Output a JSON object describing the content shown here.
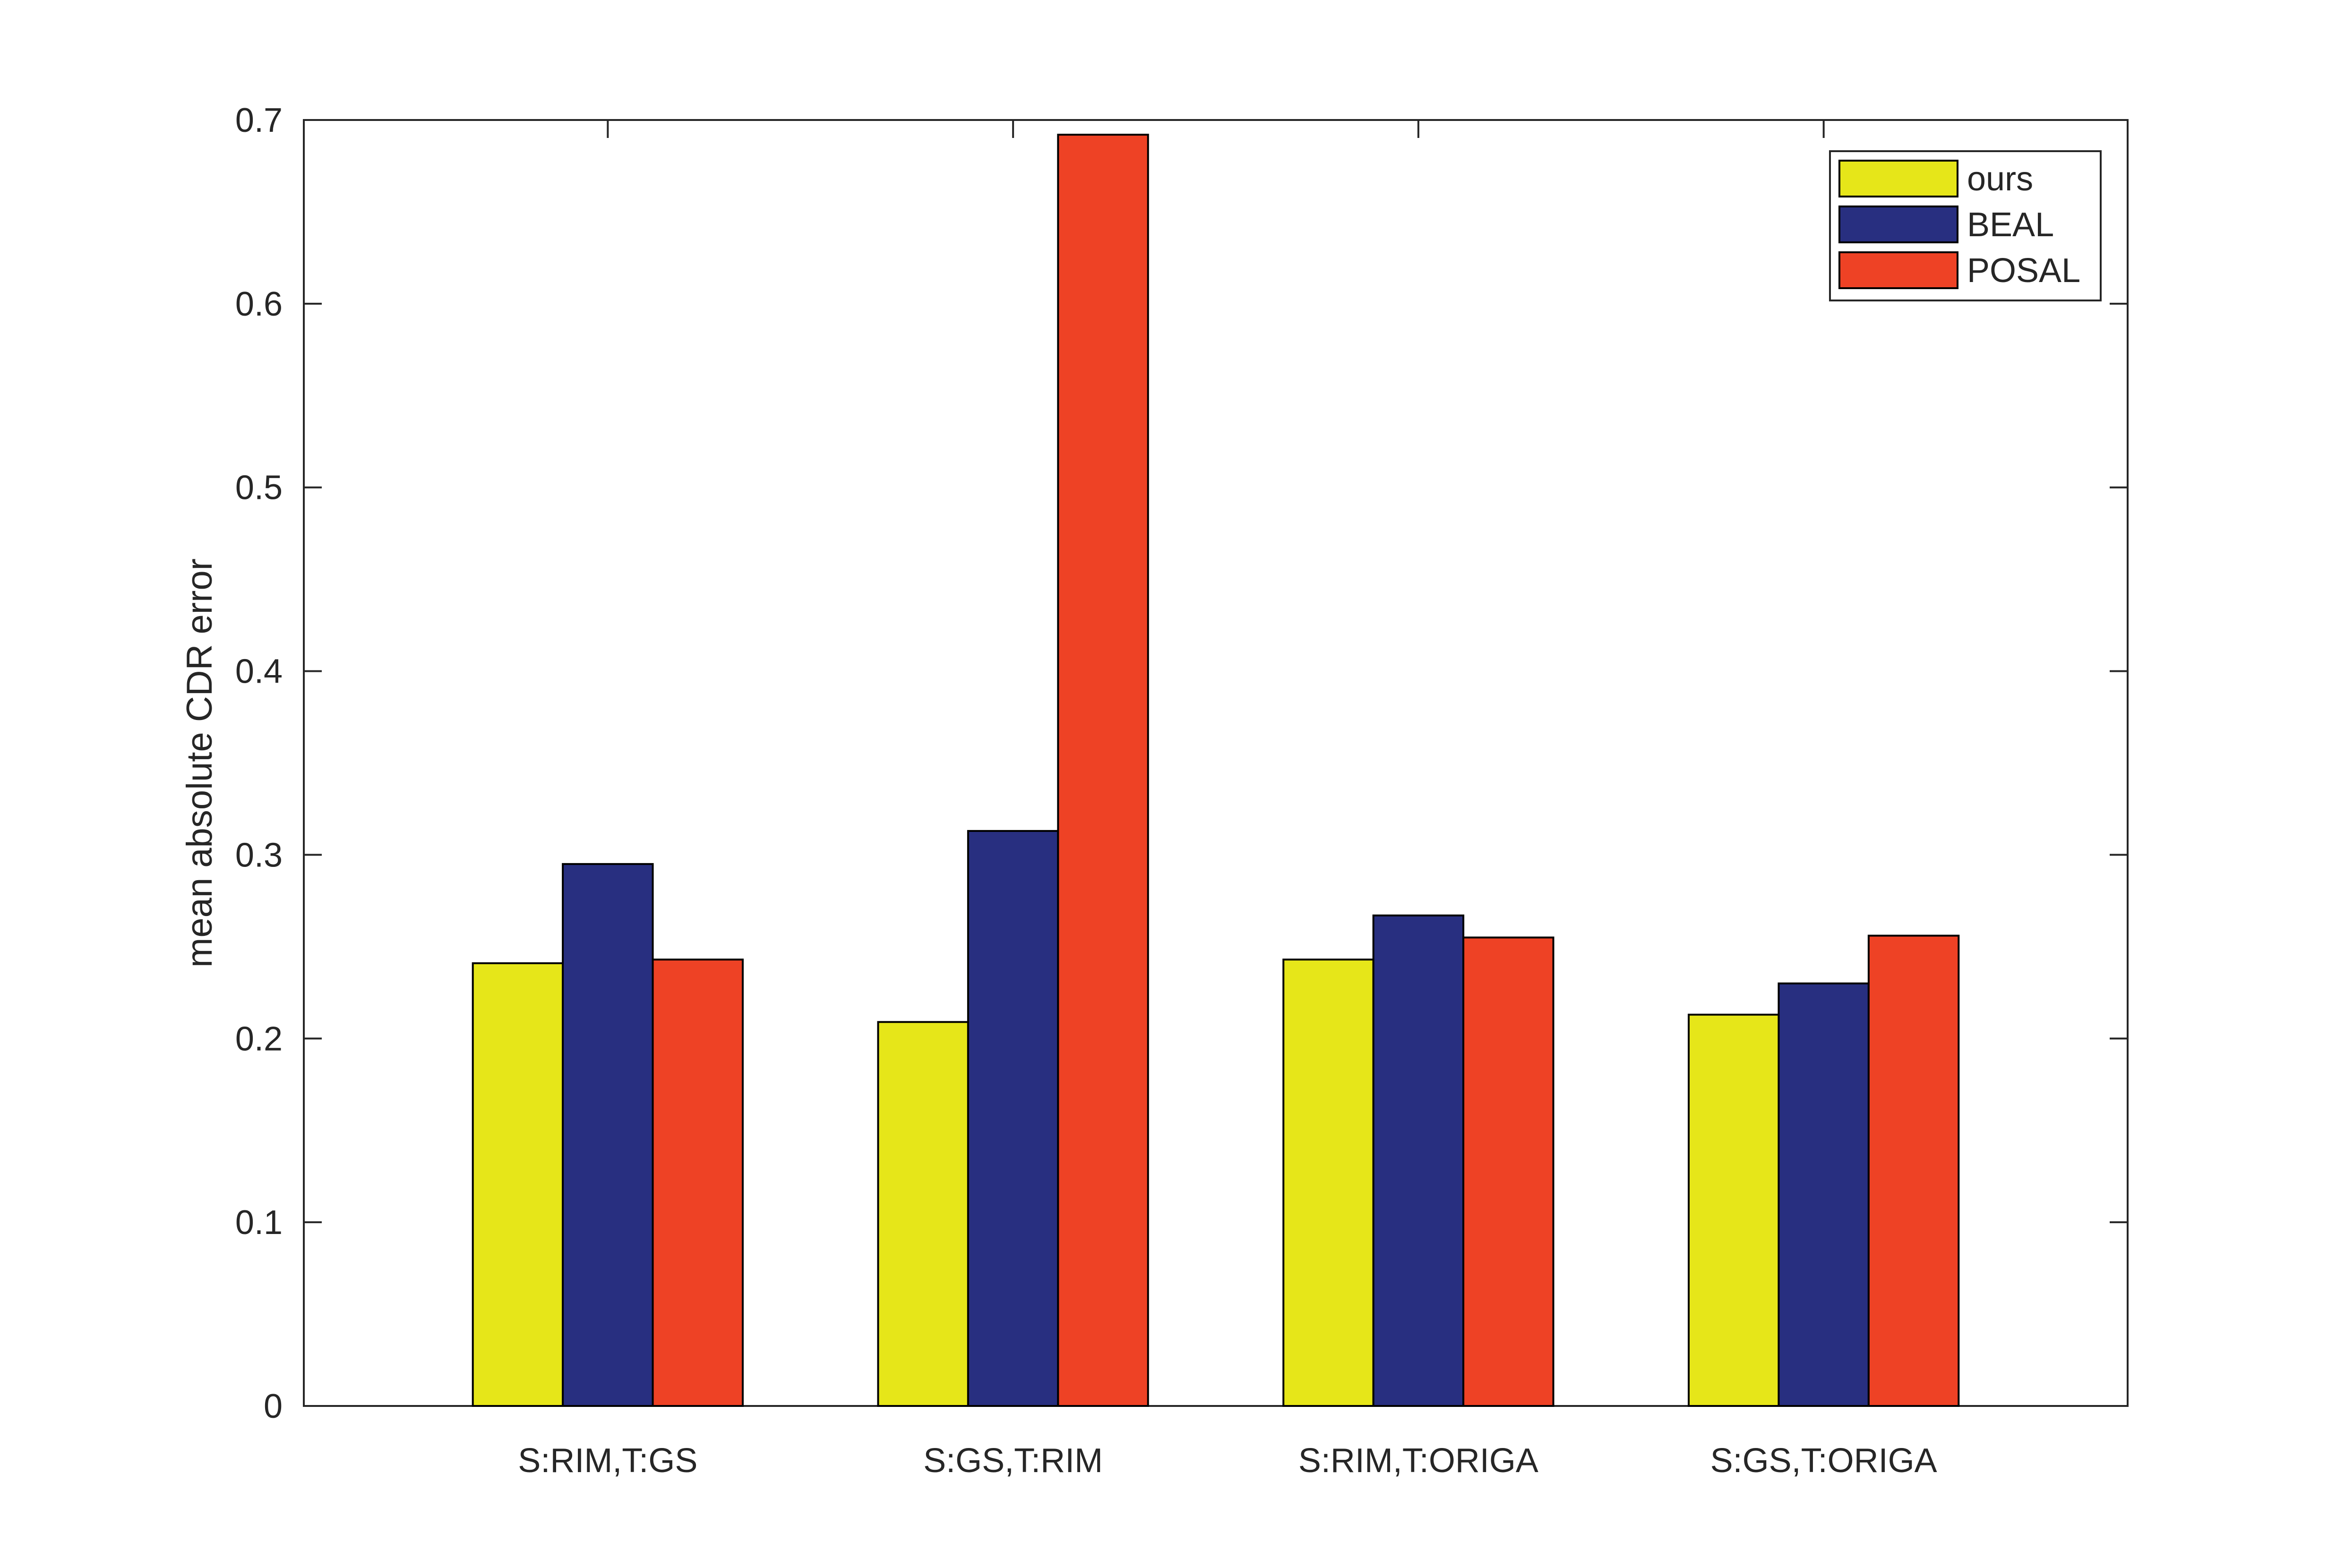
{
  "chart_data": {
    "type": "bar",
    "title": "",
    "xlabel": "",
    "ylabel": "mean absolute CDR error",
    "ylim": [
      0,
      0.7
    ],
    "yticks": [
      0,
      0.1,
      0.2,
      0.3,
      0.4,
      0.5,
      0.6,
      0.7
    ],
    "ytick_labels": [
      "0",
      "0.1",
      "0.2",
      "0.3",
      "0.4",
      "0.5",
      "0.6",
      "0.7"
    ],
    "categories": [
      "S:RIM,T:GS",
      "S:GS,T:RIM",
      "S:RIM,T:ORIGA",
      "S:GS,T:ORIGA"
    ],
    "series": [
      {
        "name": "ours",
        "color": "#e6e619",
        "values": [
          0.241,
          0.209,
          0.243,
          0.213
        ]
      },
      {
        "name": "BEAL",
        "color": "#282f80",
        "values": [
          0.295,
          0.313,
          0.267,
          0.23
        ]
      },
      {
        "name": "POSAL",
        "color": "#ee4225",
        "values": [
          0.243,
          0.692,
          0.255,
          0.256
        ]
      }
    ],
    "legend": {
      "position": "top-right"
    },
    "grid": false
  }
}
